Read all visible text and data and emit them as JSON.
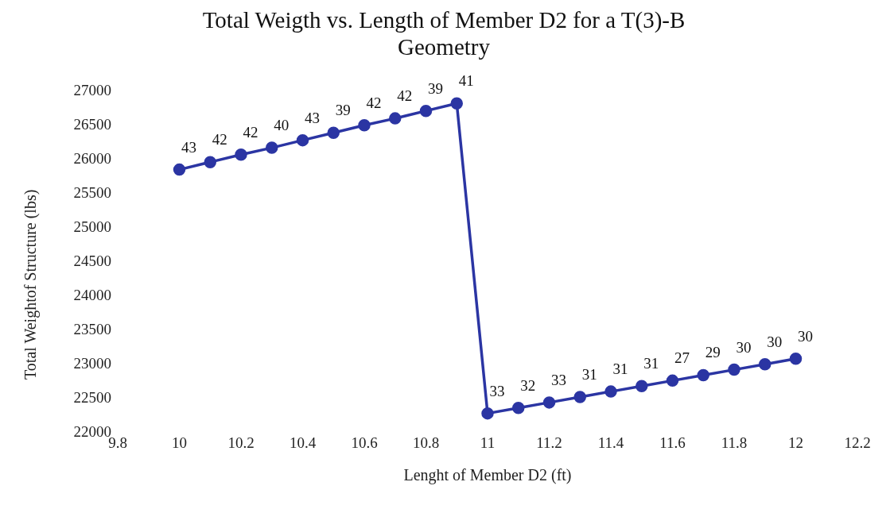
{
  "chart_data": {
    "type": "line",
    "title": "Total Weigth vs. Length of Member D2 for a T(3)-B Geometry",
    "xlabel": "Lenght of Member D2 (ft)",
    "ylabel": "Total Weightof Structure (lbs)",
    "x": [
      10,
      10.1,
      10.2,
      10.3,
      10.4,
      10.5,
      10.6,
      10.7,
      10.8,
      10.9,
      11,
      11.1,
      11.2,
      11.3,
      11.4,
      11.5,
      11.6,
      11.7,
      11.8,
      11.9,
      12
    ],
    "series": [
      {
        "color": "#2b35a3",
        "values": [
          25830,
          25940,
          26050,
          26150,
          26260,
          26370,
          26480,
          26580,
          26690,
          26800,
          22260,
          22340,
          22420,
          22500,
          22580,
          22660,
          22740,
          22820,
          22900,
          22980,
          23060
        ]
      }
    ],
    "annotations": [
      {
        "text": "43",
        "x": 10,
        "y": 25830
      },
      {
        "text": "42",
        "x": 10.1,
        "y": 25940
      },
      {
        "text": "42",
        "x": 10.2,
        "y": 26050
      },
      {
        "text": "40",
        "x": 10.3,
        "y": 26150
      },
      {
        "text": "43",
        "x": 10.4,
        "y": 26260
      },
      {
        "text": "39",
        "x": 10.5,
        "y": 26370
      },
      {
        "text": "42",
        "x": 10.6,
        "y": 26480
      },
      {
        "text": "42",
        "x": 10.7,
        "y": 26580
      },
      {
        "text": "39",
        "x": 10.8,
        "y": 26690
      },
      {
        "text": "41",
        "x": 10.9,
        "y": 26800
      },
      {
        "text": "33",
        "x": 11,
        "y": 22260
      },
      {
        "text": "32",
        "x": 11.1,
        "y": 22340
      },
      {
        "text": "33",
        "x": 11.2,
        "y": 22420
      },
      {
        "text": "31",
        "x": 11.3,
        "y": 22500
      },
      {
        "text": "31",
        "x": 11.4,
        "y": 22580
      },
      {
        "text": "31",
        "x": 11.5,
        "y": 22660
      },
      {
        "text": "27",
        "x": 11.6,
        "y": 22740
      },
      {
        "text": "29",
        "x": 11.7,
        "y": 22820
      },
      {
        "text": "30",
        "x": 11.8,
        "y": 22900
      },
      {
        "text": "30",
        "x": 11.9,
        "y": 22980
      },
      {
        "text": "30",
        "x": 12,
        "y": 23060
      }
    ],
    "xlim": [
      9.8,
      12.2
    ],
    "xticks": [
      9.8,
      10,
      10.2,
      10.4,
      10.6,
      10.8,
      11,
      11.2,
      11.4,
      11.6,
      11.8,
      12,
      12.2
    ],
    "ylim": [
      22000,
      27000
    ],
    "yticks": [
      22000,
      22500,
      23000,
      23500,
      24000,
      24500,
      25000,
      25500,
      26000,
      26500,
      27000
    ],
    "marker": "circle",
    "line_style": "solid",
    "grid": false,
    "legend": false
  }
}
